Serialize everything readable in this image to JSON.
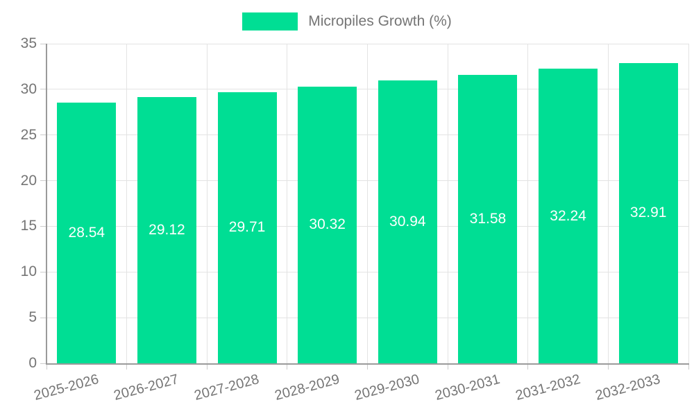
{
  "legend": {
    "label": "Micropiles Growth (%)",
    "swatch_color": "#00de94"
  },
  "chart_data": {
    "type": "bar",
    "categories": [
      "2025-2026",
      "2026-2027",
      "2027-2028",
      "2028-2029",
      "2029-2030",
      "2030-2031",
      "2031-2032",
      "2032-2033"
    ],
    "values": [
      28.54,
      29.12,
      29.71,
      30.32,
      30.94,
      31.58,
      32.24,
      32.91
    ],
    "value_labels": [
      "28.54",
      "29.12",
      "29.71",
      "30.32",
      "30.94",
      "31.58",
      "32.24",
      "32.91"
    ],
    "series_name": "Micropiles Growth (%)",
    "title": "",
    "xlabel": "",
    "ylabel": "",
    "ylim": [
      0,
      35
    ],
    "ytick_step": 5,
    "ytick_labels": [
      "0",
      "5",
      "10",
      "15",
      "20",
      "25",
      "30",
      "35"
    ],
    "grid": true,
    "legend_position": "top-center",
    "bar_color": "#00de94",
    "value_label_color": "#ffffff",
    "axis_text_color": "#757575",
    "grid_color": "#e3e3e3",
    "axis_line_color": "#9a9a9a",
    "x_label_rotation_deg": -15
  }
}
